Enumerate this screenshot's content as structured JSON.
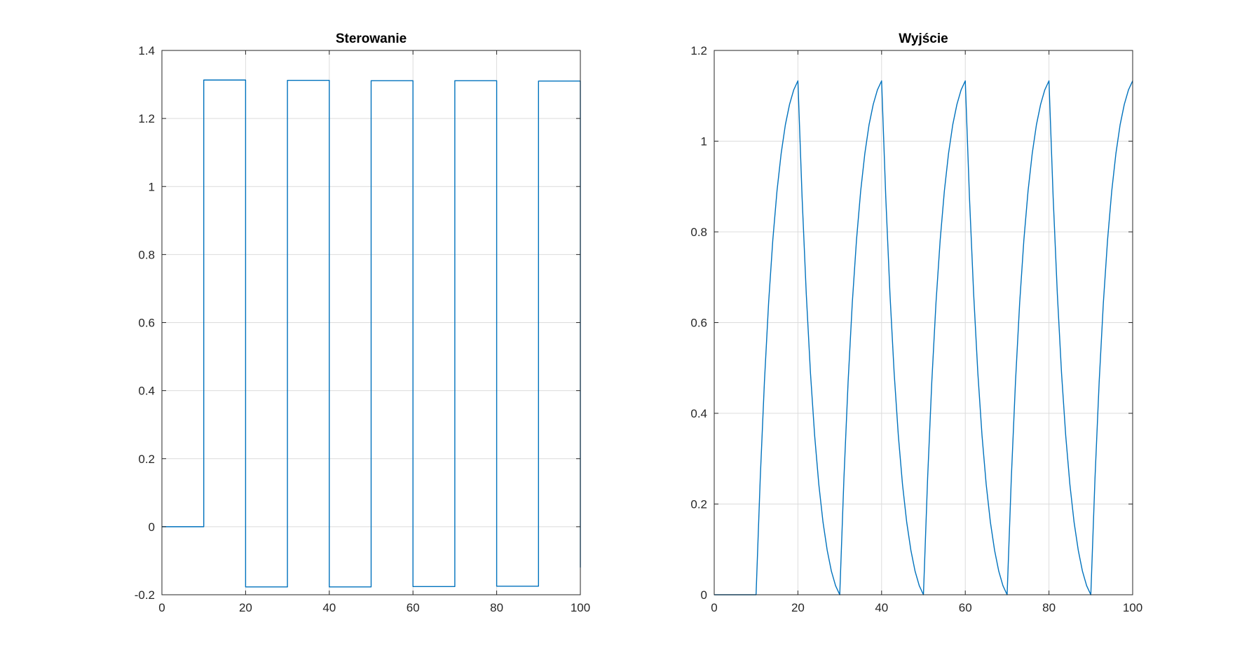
{
  "chart_data": [
    {
      "type": "line",
      "title": "Sterowanie",
      "xlabel": "",
      "ylabel": "",
      "xlim": [
        0,
        100
      ],
      "ylim": [
        -0.2,
        1.4
      ],
      "xticks": [
        0,
        20,
        40,
        60,
        80,
        100
      ],
      "yticks": [
        -0.2,
        0,
        0.2,
        0.4,
        0.6,
        0.8,
        1,
        1.2,
        1.4
      ],
      "xtick_labels": [
        "0",
        "20",
        "40",
        "60",
        "80",
        "100"
      ],
      "ytick_labels": [
        "-0.2",
        "0",
        "0.2",
        "0.4",
        "0.6",
        "0.8",
        "1",
        "1.2",
        "1.4"
      ],
      "grid": true,
      "color": "#0072BD",
      "series": [
        {
          "x": [
            0,
            10,
            10,
            20,
            20,
            30,
            30,
            40,
            40,
            50,
            50,
            60,
            60,
            70,
            70,
            80,
            80,
            90,
            90,
            100,
            100
          ],
          "y": [
            0,
            0,
            1.313,
            1.313,
            -0.177,
            -0.177,
            1.312,
            1.312,
            -0.177,
            -0.177,
            1.311,
            1.311,
            -0.176,
            -0.176,
            1.311,
            1.311,
            -0.175,
            -0.175,
            1.31,
            1.31,
            -0.12
          ]
        }
      ]
    },
    {
      "type": "line",
      "title": "Wyjście",
      "xlabel": "",
      "ylabel": "",
      "xlim": [
        0,
        100
      ],
      "ylim": [
        0,
        1.2
      ],
      "xticks": [
        0,
        20,
        40,
        60,
        80,
        100
      ],
      "yticks": [
        0,
        0.2,
        0.4,
        0.6,
        0.8,
        1,
        1.2
      ],
      "xtick_labels": [
        "0",
        "20",
        "40",
        "60",
        "80",
        "100"
      ],
      "ytick_labels": [
        "0",
        "0.2",
        "0.4",
        "0.6",
        "0.8",
        "1",
        "1.2"
      ],
      "grid": true,
      "color": "#0072BD",
      "series": [
        {
          "x": [
            0,
            10,
            11,
            12,
            13,
            14,
            15,
            16,
            17,
            18,
            19,
            20,
            21,
            22,
            23,
            24,
            25,
            26,
            27,
            28,
            29,
            30,
            31,
            32,
            33,
            34,
            35,
            36,
            37,
            38,
            39,
            40,
            41,
            42,
            43,
            44,
            45,
            46,
            47,
            48,
            49,
            50,
            51,
            52,
            53,
            54,
            55,
            56,
            57,
            58,
            59,
            60,
            61,
            62,
            63,
            64,
            65,
            66,
            67,
            68,
            69,
            70,
            71,
            72,
            73,
            74,
            75,
            76,
            77,
            78,
            79,
            80,
            81,
            82,
            83,
            84,
            85,
            86,
            87,
            88,
            89,
            90,
            91,
            92,
            93,
            94,
            95,
            96,
            97,
            98,
            99,
            100
          ],
          "y": [
            0,
            0,
            0.257,
            0.47,
            0.644,
            0.782,
            0.89,
            0.973,
            1.036,
            1.081,
            1.113,
            1.133,
            0.876,
            0.663,
            0.489,
            0.351,
            0.243,
            0.16,
            0.098,
            0.052,
            0.02,
            0,
            0.257,
            0.47,
            0.644,
            0.782,
            0.89,
            0.973,
            1.036,
            1.081,
            1.113,
            1.133,
            0.876,
            0.663,
            0.489,
            0.351,
            0.243,
            0.16,
            0.098,
            0.052,
            0.02,
            0,
            0.257,
            0.47,
            0.644,
            0.782,
            0.89,
            0.973,
            1.036,
            1.081,
            1.113,
            1.133,
            0.876,
            0.663,
            0.489,
            0.351,
            0.243,
            0.16,
            0.098,
            0.052,
            0.02,
            0,
            0.257,
            0.47,
            0.644,
            0.782,
            0.89,
            0.973,
            1.036,
            1.081,
            1.113,
            1.133,
            0.876,
            0.663,
            0.489,
            0.351,
            0.243,
            0.16,
            0.098,
            0.052,
            0.02,
            0,
            0.257,
            0.47,
            0.644,
            0.782,
            0.89,
            0.973,
            1.036,
            1.081,
            1.113,
            1.133
          ]
        }
      ]
    }
  ]
}
